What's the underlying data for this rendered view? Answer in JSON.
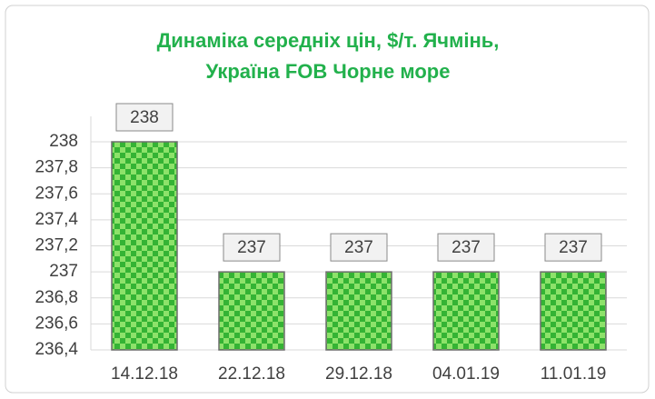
{
  "chart_data": {
    "type": "bar",
    "title": [
      "Динаміка середніх цін, $/т. Ячмінь,",
      "Україна FOB Чорне море"
    ],
    "categories": [
      "14.12.18",
      "22.12.18",
      "29.12.18",
      "04.01.19",
      "11.01.19"
    ],
    "values": [
      238,
      237,
      237,
      237,
      237
    ],
    "color": "#34b334",
    "ylim": [
      236.4,
      238
    ],
    "yticks": [
      {
        "value": 236.4,
        "label": "236,4"
      },
      {
        "value": 236.6,
        "label": "236,6"
      },
      {
        "value": 236.8,
        "label": "236,8"
      },
      237,
      {
        "value": 237.2,
        "label": "237,2"
      },
      {
        "value": 237.4,
        "label": "237,4"
      },
      {
        "value": 237.6,
        "label": "237,6"
      },
      {
        "value": 237.8,
        "label": "237,8"
      },
      238
    ],
    "grid": true
  }
}
